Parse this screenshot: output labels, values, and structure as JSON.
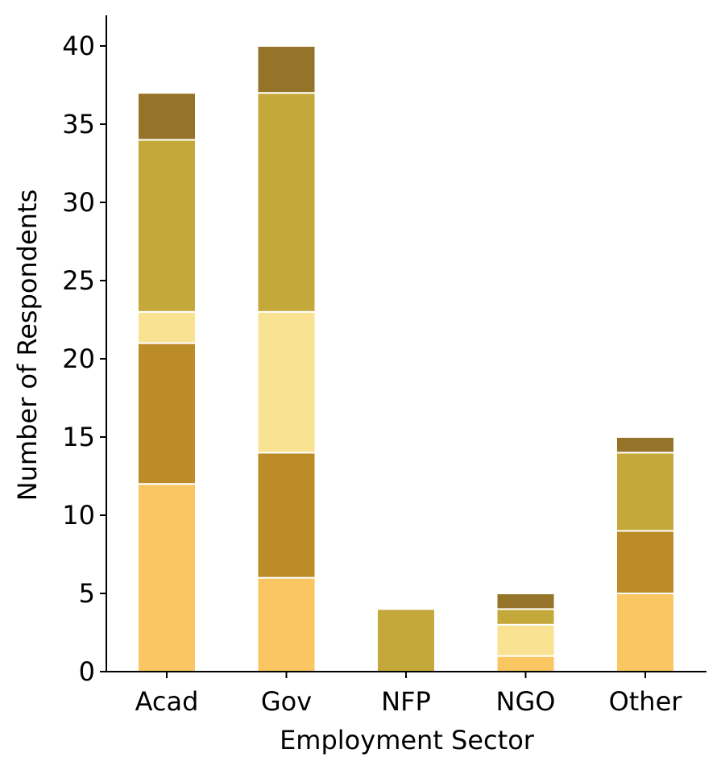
{
  "chart_data": {
    "type": "bar",
    "stacked": true,
    "title": "",
    "xlabel": "Employment Sector",
    "ylabel": "Number of Respondents",
    "categories": [
      "Acad",
      "Gov",
      "NFP",
      "NGO",
      "Other"
    ],
    "ylim": [
      0,
      42
    ],
    "yticks": [
      0,
      5,
      10,
      15,
      20,
      25,
      30,
      35,
      40
    ],
    "grid": false,
    "legend": "none",
    "series": [
      {
        "color": "#F9C662",
        "values": [
          12,
          6,
          0,
          1,
          5
        ]
      },
      {
        "color": "#BC8C28",
        "values": [
          9,
          8,
          0,
          0,
          4
        ]
      },
      {
        "color": "#FAE293",
        "values": [
          2,
          9,
          0,
          2,
          0
        ]
      },
      {
        "color": "#C4A83A",
        "values": [
          11,
          14,
          4,
          1,
          5
        ]
      },
      {
        "color": "#957329",
        "values": [
          3,
          3,
          0,
          1,
          1
        ]
      }
    ]
  }
}
